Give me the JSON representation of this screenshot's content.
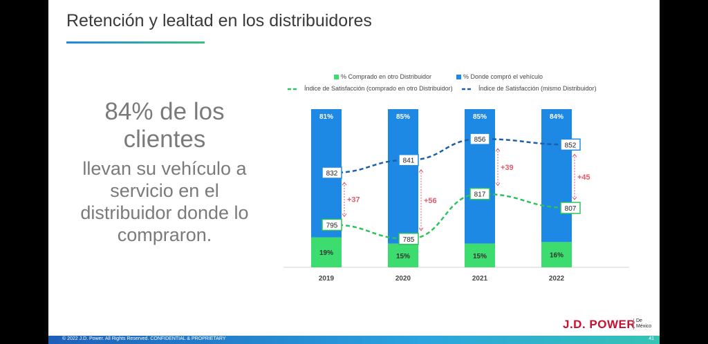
{
  "slide": {
    "title": "Retención y lealtad en los distribuidores",
    "headline_line1": "84% de los",
    "headline_line2": "clientes",
    "body_line1": "llevan su vehículo a",
    "body_line2": "servicio en el",
    "body_line3": "distribuidor donde lo",
    "body_line4": "compraron.",
    "footer_text": "© 2022 J.D. Power. All Rights Reserved. CONFIDENTIAL & PROPRIETARY",
    "page_number": "41",
    "logo_text": "J.D. POWER",
    "logo_sub_line1": "De",
    "logo_sub_line2": "México"
  },
  "colors": {
    "green": "#3ddc6e",
    "blue": "#1e88e5",
    "dark_blue_line": "#1a5fa8",
    "green_line": "#2ec25a",
    "diff_red": "#e05a6a"
  },
  "chart_data": {
    "type": "bar",
    "stacked": true,
    "categories": [
      "2019",
      "2020",
      "2021",
      "2022"
    ],
    "series": [
      {
        "name": "% Comprado en otro Distribuidor",
        "values": [
          19,
          15,
          15,
          16
        ],
        "labels": [
          "19%",
          "15%",
          "15%",
          "16%"
        ]
      },
      {
        "name": "% Donde compró el vehículo",
        "values": [
          81,
          85,
          85,
          84
        ],
        "labels": [
          "81%",
          "85%",
          "85%",
          "84%"
        ]
      }
    ],
    "lines": [
      {
        "name": "Índice de Satisfacción (comprado en otro Distribuidor)",
        "values": [
          795,
          785,
          817,
          807
        ]
      },
      {
        "name": "Índice de Satisfacción (mismo Distribuidor)",
        "values": [
          832,
          841,
          856,
          852
        ]
      }
    ],
    "differences": [
      "+37",
      "+56",
      "+39",
      "+45"
    ],
    "legend_position": "top"
  }
}
